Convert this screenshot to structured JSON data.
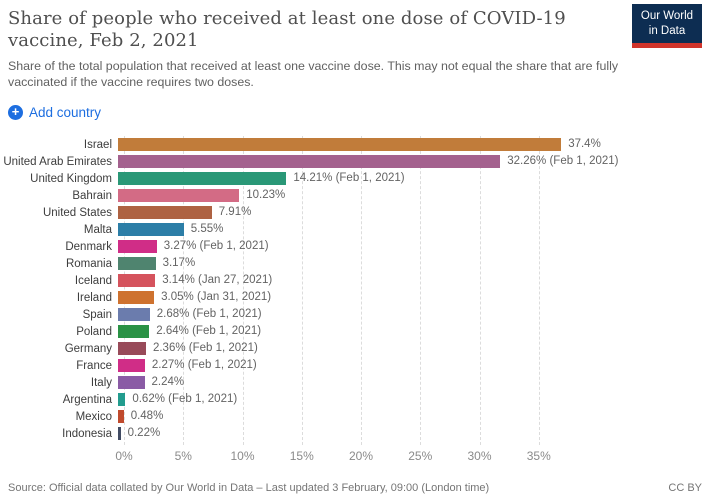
{
  "header": {
    "title": "Share of people who received at least one dose of COVID-19 vaccine, Feb 2, 2021",
    "subtitle": "Share of the total population that received at least one vaccine dose. This may not equal the share that are fully vaccinated if the vaccine requires two doses.",
    "logo": {
      "line1": "Our World",
      "line2": "in Data",
      "bg_color": "#0d2d52",
      "accent_color": "#d1342b"
    }
  },
  "controls": {
    "add_country_label": "Add country",
    "accent_color": "#1d6ee0",
    "plus_glyph": "+"
  },
  "chart_data": {
    "type": "bar",
    "orientation": "horizontal",
    "title": "Share of people who received at least one dose of COVID-19 vaccine, Feb 2, 2021",
    "xlabel": "",
    "ylabel": "",
    "xlim": [
      0,
      38.5
    ],
    "grid": true,
    "gridline_color": "#dcdcdc",
    "x_ticks": [
      0,
      5,
      10,
      15,
      20,
      25,
      30,
      35
    ],
    "x_tick_labels": [
      "0%",
      "5%",
      "10%",
      "15%",
      "20%",
      "25%",
      "30%",
      "35%"
    ],
    "bars": [
      {
        "country": "Israel",
        "value": 37.4,
        "label": "37.4%",
        "color": "#c17c3a"
      },
      {
        "country": "United Arab Emirates",
        "value": 32.26,
        "label": "32.26% (Feb 1, 2021)",
        "color": "#a4618e"
      },
      {
        "country": "United Kingdom",
        "value": 14.21,
        "label": "14.21% (Feb 1, 2021)",
        "color": "#2a9877"
      },
      {
        "country": "Bahrain",
        "value": 10.23,
        "label": "10.23%",
        "color": "#d36b85"
      },
      {
        "country": "United States",
        "value": 7.91,
        "label": "7.91%",
        "color": "#ae6242"
      },
      {
        "country": "Malta",
        "value": 5.55,
        "label": "5.55%",
        "color": "#2c7ea7"
      },
      {
        "country": "Denmark",
        "value": 3.27,
        "label": "3.27% (Feb 1, 2021)",
        "color": "#d02d87"
      },
      {
        "country": "Romania",
        "value": 3.17,
        "label": "3.17%",
        "color": "#4f846f"
      },
      {
        "country": "Iceland",
        "value": 3.14,
        "label": "3.14% (Jan 27, 2021)",
        "color": "#d5535d"
      },
      {
        "country": "Ireland",
        "value": 3.05,
        "label": "3.05% (Jan 31, 2021)",
        "color": "#ce722f"
      },
      {
        "country": "Spain",
        "value": 2.68,
        "label": "2.68% (Feb 1, 2021)",
        "color": "#6b7cad"
      },
      {
        "country": "Poland",
        "value": 2.64,
        "label": "2.64% (Feb 1, 2021)",
        "color": "#2a9245"
      },
      {
        "country": "Germany",
        "value": 2.36,
        "label": "2.36% (Feb 1, 2021)",
        "color": "#984a59"
      },
      {
        "country": "France",
        "value": 2.27,
        "label": "2.27% (Feb 1, 2021)",
        "color": "#d02d87"
      },
      {
        "country": "Italy",
        "value": 2.24,
        "label": "2.24%",
        "color": "#8a5ba5"
      },
      {
        "country": "Argentina",
        "value": 0.62,
        "label": "0.62% (Feb 1, 2021)",
        "color": "#229c8e"
      },
      {
        "country": "Mexico",
        "value": 0.48,
        "label": "0.48%",
        "color": "#c04a2d"
      },
      {
        "country": "Indonesia",
        "value": 0.22,
        "label": "0.22%",
        "color": "#414b63"
      }
    ]
  },
  "footer": {
    "source": "Source: Official data collated by Our World in Data – Last updated 3 February, 09:00 (London time)",
    "license": "CC BY"
  }
}
